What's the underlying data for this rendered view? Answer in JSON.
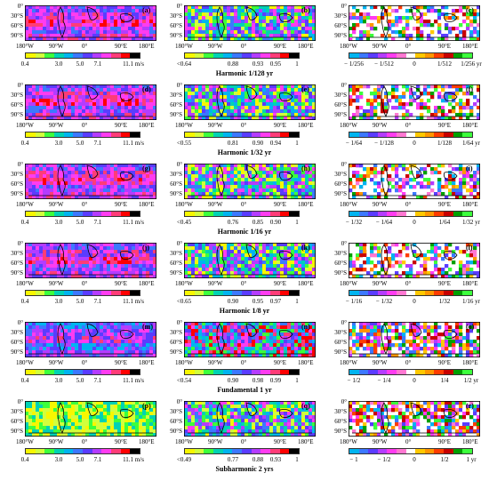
{
  "lat_labels": [
    "0°",
    "30°S",
    "60°S",
    "90°S"
  ],
  "lon_labels": [
    "180°W",
    "90°W",
    "0°",
    "90°E",
    "180°E"
  ],
  "speed_colorbar": {
    "ticks": [
      "0.4",
      "3.0",
      "5.0",
      "7.1",
      "11.1 m/s"
    ],
    "colors": [
      "#f7f700",
      "#d2ff3c",
      "#3cff3c",
      "#00d2b4",
      "#00b4f0",
      "#3c78ff",
      "#5a3cff",
      "#b43cff",
      "#ff3cf0",
      "#ff3c78",
      "#ff0000",
      "#000000"
    ]
  },
  "corr_colors": [
    "#f7f700",
    "#d2ff3c",
    "#3cff3c",
    "#00d2b4",
    "#00b4f0",
    "#3c78ff",
    "#5a3cff",
    "#b43cff",
    "#ff3cf0",
    "#ff3c78",
    "#ff0000",
    "#000000"
  ],
  "trend_colors": [
    "#00b4f0",
    "#3c78ff",
    "#5a3cff",
    "#b43cff",
    "#ff3cf0",
    "#ff78d2",
    "#ffffff",
    "#ffc800",
    "#ff9600",
    "#ff3c00",
    "#c80000",
    "#00a000",
    "#3cff3c"
  ],
  "rows": [
    {
      "title": "Harmonic 1/128 yr",
      "panels": [
        "(a)",
        "(b)",
        "(c)"
      ],
      "corr_ticks": [
        "<0.64",
        "0.88",
        "0.93",
        "0.95",
        "1"
      ],
      "trend_ticks": [
        "− 1/256",
        "− 1/512",
        "0",
        "1/512",
        "1/256 yr"
      ]
    },
    {
      "title": "Harmonic 1/32 yr",
      "panels": [
        "(d)",
        "(e)",
        "(f)"
      ],
      "corr_ticks": [
        "<0.55",
        "0.81",
        "0.90",
        "0.94",
        "1"
      ],
      "trend_ticks": [
        "− 1/64",
        "− 1/128",
        "0",
        "1/128",
        "1/64 yr"
      ]
    },
    {
      "title": "Harmonic 1/16 yr",
      "panels": [
        "(g)",
        "(h)",
        "(i)"
      ],
      "corr_ticks": [
        "<0.45",
        "0.76",
        "0.85",
        "0.90",
        "1"
      ],
      "trend_ticks": [
        "− 1/32",
        "− 1/64",
        "0",
        "1/64",
        "1/32 yr"
      ]
    },
    {
      "title": "Harmonic 1/8 yr",
      "panels": [
        "(j)",
        "(k)",
        "(l)"
      ],
      "corr_ticks": [
        "<0.65",
        "0.90",
        "0.95",
        "0.97",
        "1"
      ],
      "trend_ticks": [
        "− 1/16",
        "− 1/32",
        "0",
        "1/32",
        "1/16 yr"
      ]
    },
    {
      "title": "Fundamental 1 yr",
      "panels": [
        "(m)",
        "(n)",
        "(o)"
      ],
      "corr_ticks": [
        "<0.54",
        "0.90",
        "0.98",
        "0.99",
        "1"
      ],
      "trend_ticks": [
        "− 1/2",
        "− 1/4",
        "0",
        "1/4",
        "1/2 yr"
      ]
    },
    {
      "title": "Subharmonic 2 yrs",
      "panels": [
        "(p)",
        "(q)",
        "(r)"
      ],
      "corr_ticks": [
        "<0.49",
        "0.77",
        "0.88",
        "0.93",
        "1"
      ],
      "trend_ticks": [
        "− 1",
        "− 1/2",
        "0",
        "1/2",
        "1 yr"
      ]
    }
  ]
}
